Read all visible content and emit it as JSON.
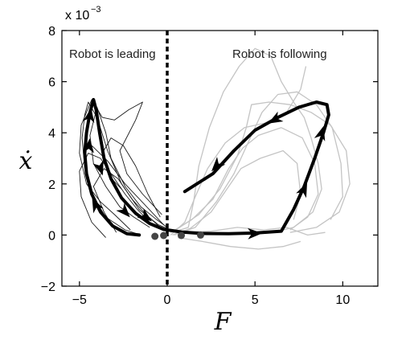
{
  "chart_data": {
    "type": "line",
    "title": "",
    "xlabel": "F",
    "ylabel": "ẋ",
    "xlim": [
      -6,
      12
    ],
    "ylim": [
      -2,
      8
    ],
    "x_ticks": [
      -5,
      0,
      5,
      10
    ],
    "y_ticks": [
      -2,
      0,
      2,
      4,
      6,
      8
    ],
    "x_tick_labels": [
      "−5",
      "0",
      "5",
      "10"
    ],
    "y_tick_labels": [
      "−2",
      "0",
      "2",
      "4",
      "6",
      "8"
    ],
    "y_multiplier_label": "x 10",
    "y_multiplier_exponent": "−3",
    "grid": false,
    "annotations": [
      "Robot is leading",
      "Robot is following"
    ],
    "divider_x": 0,
    "mean_trajectory": [
      [
        -1.6,
        0.0
      ],
      [
        -2.3,
        0.05
      ],
      [
        -3.1,
        0.35
      ],
      [
        -3.8,
        0.9
      ],
      [
        -4.3,
        1.6
      ],
      [
        -4.6,
        2.4
      ],
      [
        -4.7,
        3.2
      ],
      [
        -4.6,
        4.0
      ],
      [
        -4.4,
        4.8
      ],
      [
        -4.2,
        5.3
      ],
      [
        -4.05,
        4.9
      ],
      [
        -3.85,
        4.0
      ],
      [
        -3.6,
        3.0
      ],
      [
        -3.2,
        2.2
      ],
      [
        -2.6,
        1.45
      ],
      [
        -1.8,
        0.85
      ],
      [
        -1.0,
        0.45
      ],
      [
        -0.2,
        0.22
      ],
      [
        0.8,
        0.12
      ],
      [
        2.0,
        0.06
      ],
      [
        3.5,
        0.05
      ],
      [
        5.0,
        0.08
      ],
      [
        6.5,
        0.15
      ],
      [
        7.2,
        1.0
      ],
      [
        7.8,
        1.9
      ],
      [
        8.4,
        3.0
      ],
      [
        8.9,
        4.0
      ],
      [
        9.2,
        4.7
      ],
      [
        9.1,
        5.1
      ],
      [
        8.5,
        5.2
      ],
      [
        7.5,
        5.0
      ],
      [
        6.3,
        4.6
      ],
      [
        5.0,
        4.1
      ],
      [
        3.8,
        3.3
      ],
      [
        2.6,
        2.4
      ],
      [
        1.0,
        1.7
      ]
    ],
    "arrow_points": [
      [
        -4.4,
        4.7
      ],
      [
        -4.45,
        3.5
      ],
      [
        -3.8,
        2.6
      ],
      [
        -4.1,
        1.2
      ],
      [
        -2.4,
        0.9
      ],
      [
        -1.2,
        0.7
      ],
      [
        5.0,
        0.06
      ],
      [
        7.8,
        1.8
      ],
      [
        8.8,
        4.0
      ],
      [
        6.1,
        4.5
      ],
      [
        2.8,
        2.7
      ]
    ],
    "end_markers": [
      [
        -0.7,
        -0.05
      ],
      [
        -0.2,
        -0.02
      ],
      [
        0.8,
        -0.02
      ],
      [
        1.9,
        0.0
      ]
    ],
    "leading_trials": [
      [
        [
          -1.5,
          0.0
        ],
        [
          -2.4,
          0.2
        ],
        [
          -3.5,
          0.7
        ],
        [
          -4.3,
          1.6
        ],
        [
          -4.7,
          2.6
        ],
        [
          -4.85,
          3.8
        ],
        [
          -4.7,
          4.7
        ],
        [
          -4.5,
          5.2
        ],
        [
          -4.0,
          4.6
        ],
        [
          -3.4,
          3.3
        ],
        [
          -2.6,
          2.0
        ],
        [
          -1.6,
          1.0
        ],
        [
          -0.5,
          0.4
        ],
        [
          0.2,
          0.2
        ]
      ],
      [
        [
          -2.1,
          0.2
        ],
        [
          -3.0,
          0.8
        ],
        [
          -3.8,
          1.3
        ],
        [
          -4.6,
          2.0
        ],
        [
          -5.0,
          3.2
        ],
        [
          -4.9,
          4.3
        ],
        [
          -4.3,
          5.3
        ],
        [
          -3.7,
          4.6
        ],
        [
          -3.0,
          4.5
        ],
        [
          -2.2,
          4.9
        ],
        [
          -1.4,
          5.2
        ],
        [
          -1.8,
          4.5
        ],
        [
          -2.7,
          3.3
        ],
        [
          -2.3,
          2.4
        ],
        [
          -1.4,
          1.6
        ],
        [
          -0.3,
          0.8
        ]
      ],
      [
        [
          -1.0,
          0.3
        ],
        [
          -1.9,
          0.7
        ],
        [
          -2.7,
          1.1
        ],
        [
          -3.5,
          1.9
        ],
        [
          -4.2,
          2.8
        ],
        [
          -4.4,
          3.9
        ],
        [
          -4.0,
          5.0
        ],
        [
          -3.5,
          4.0
        ],
        [
          -3.2,
          3.0
        ],
        [
          -2.4,
          1.9
        ],
        [
          -1.5,
          1.1
        ],
        [
          -0.6,
          0.6
        ],
        [
          0.0,
          0.3
        ]
      ],
      [
        [
          -3.5,
          -0.1
        ],
        [
          -4.3,
          0.5
        ],
        [
          -4.9,
          1.5
        ],
        [
          -5.0,
          2.5
        ],
        [
          -4.5,
          3.2
        ],
        [
          -3.8,
          3.0
        ],
        [
          -3.1,
          2.3
        ],
        [
          -2.4,
          1.6
        ],
        [
          -1.7,
          1.0
        ],
        [
          -1.0,
          0.5
        ]
      ],
      [
        [
          -2.9,
          0.1
        ],
        [
          -3.6,
          0.9
        ],
        [
          -4.2,
          1.9
        ],
        [
          -3.6,
          2.6
        ],
        [
          -2.8,
          2.2
        ],
        [
          -2.0,
          1.4
        ],
        [
          -1.2,
          0.8
        ],
        [
          -0.4,
          0.3
        ]
      ],
      [
        [
          -2.6,
          1.8
        ],
        [
          -3.3,
          2.3
        ],
        [
          -3.7,
          3.2
        ],
        [
          -3.2,
          3.8
        ],
        [
          -2.5,
          3.5
        ],
        [
          -1.8,
          2.7
        ],
        [
          -1.1,
          1.6
        ],
        [
          -0.4,
          0.7
        ]
      ],
      [
        [
          -4.3,
          3.5
        ],
        [
          -3.4,
          2.9
        ],
        [
          -2.4,
          2.0
        ],
        [
          -1.3,
          1.2
        ],
        [
          -0.2,
          0.4
        ]
      ]
    ],
    "following_trials": [
      [
        [
          0.3,
          0.1
        ],
        [
          1.2,
          0.3
        ],
        [
          1.5,
          1.3
        ],
        [
          1.8,
          2.7
        ],
        [
          2.4,
          4.2
        ],
        [
          3.2,
          5.6
        ],
        [
          4.1,
          6.6
        ],
        [
          5.0,
          7.3
        ],
        [
          5.9,
          7.0
        ],
        [
          6.5,
          6.0
        ],
        [
          7.2,
          5.2
        ],
        [
          7.8,
          4.6
        ],
        [
          8.2,
          3.8
        ],
        [
          8.6,
          2.8
        ],
        [
          8.8,
          1.8
        ],
        [
          8.3,
          0.9
        ],
        [
          7.2,
          0.3
        ],
        [
          6.0,
          0.1
        ]
      ],
      [
        [
          0.5,
          0.2
        ],
        [
          1.8,
          0.8
        ],
        [
          3.0,
          1.8
        ],
        [
          4.0,
          3.1
        ],
        [
          4.5,
          4.2
        ],
        [
          4.8,
          5.1
        ],
        [
          5.8,
          5.2
        ],
        [
          7.0,
          5.1
        ],
        [
          8.2,
          4.8
        ],
        [
          9.3,
          4.3
        ],
        [
          10.2,
          3.3
        ],
        [
          10.4,
          2.0
        ],
        [
          9.8,
          0.9
        ],
        [
          8.5,
          0.3
        ],
        [
          7.0,
          0.1
        ]
      ],
      [
        [
          0.2,
          0.1
        ],
        [
          1.4,
          0.6
        ],
        [
          2.6,
          1.4
        ],
        [
          3.5,
          2.6
        ],
        [
          4.3,
          3.4
        ],
        [
          5.2,
          3.9
        ],
        [
          6.5,
          4.2
        ],
        [
          7.7,
          3.8
        ],
        [
          8.4,
          2.8
        ],
        [
          8.6,
          1.6
        ],
        [
          8.0,
          0.7
        ],
        [
          7.0,
          0.2
        ]
      ],
      [
        [
          0.3,
          0.0
        ],
        [
          1.3,
          0.25
        ],
        [
          2.5,
          0.9
        ],
        [
          3.4,
          1.8
        ],
        [
          4.2,
          2.6
        ],
        [
          5.3,
          3.0
        ],
        [
          6.6,
          3.3
        ],
        [
          7.4,
          2.8
        ],
        [
          7.6,
          1.6
        ],
        [
          7.2,
          0.6
        ]
      ],
      [
        [
          0.4,
          0.0
        ],
        [
          1.6,
          0.3
        ],
        [
          2.8,
          1.3
        ],
        [
          3.8,
          2.4
        ],
        [
          4.6,
          3.6
        ],
        [
          5.4,
          4.8
        ],
        [
          6.3,
          5.5
        ],
        [
          7.4,
          5.6
        ],
        [
          8.5,
          5.1
        ],
        [
          9.4,
          4.2
        ],
        [
          9.9,
          2.8
        ],
        [
          10.0,
          1.5
        ],
        [
          9.3,
          0.6
        ]
      ],
      [
        [
          0.6,
          -0.1
        ],
        [
          2.0,
          -0.25
        ],
        [
          3.6,
          -0.45
        ],
        [
          5.2,
          -0.55
        ],
        [
          6.6,
          -0.45
        ],
        [
          7.6,
          -0.25
        ]
      ],
      [
        [
          0.8,
          0.1
        ],
        [
          2.5,
          0.15
        ],
        [
          4.0,
          0.3
        ],
        [
          5.5,
          0.2
        ],
        [
          6.8,
          0.3
        ],
        [
          8.0,
          0.0
        ],
        [
          9.0,
          0.1
        ]
      ],
      [
        [
          0.2,
          0.0
        ],
        [
          1.0,
          0.5
        ],
        [
          1.6,
          1.5
        ],
        [
          2.3,
          2.6
        ],
        [
          3.3,
          3.6
        ],
        [
          4.4,
          4.2
        ],
        [
          5.7,
          4.4
        ],
        [
          6.8,
          4.8
        ],
        [
          7.6,
          5.7
        ],
        [
          7.9,
          6.6
        ]
      ]
    ]
  }
}
